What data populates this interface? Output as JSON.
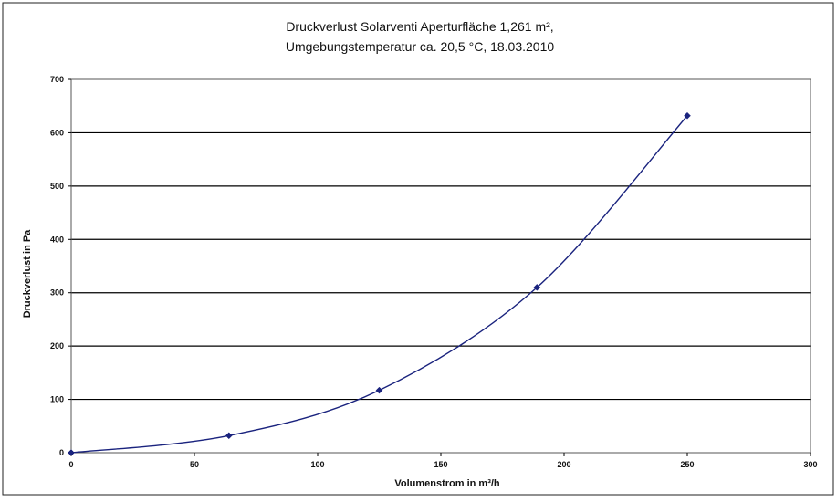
{
  "chart_data": {
    "type": "line",
    "title_lines": [
      "Druckverlust Solarventi Aperturfläche 1,261 m²,",
      "Umgebungstemperatur ca. 20,5 °C, 18.03.2010"
    ],
    "xlabel": "Volumenstrom in m³/h",
    "ylabel": "Druckverlust in Pa",
    "xlim": [
      0,
      300
    ],
    "ylim": [
      0,
      700
    ],
    "x_ticks": [
      "0",
      "50",
      "100",
      "150",
      "200",
      "250",
      "300"
    ],
    "y_ticks": [
      "0",
      "100",
      "200",
      "300",
      "400",
      "500",
      "600",
      "700"
    ],
    "grid": "horizontal",
    "legend": "none",
    "series": [
      {
        "color": "#1a237e",
        "line_style": "smooth",
        "marker": "diamond",
        "points": [
          {
            "x": 0,
            "y": 0
          },
          {
            "x": 64,
            "y": 32
          },
          {
            "x": 125,
            "y": 117
          },
          {
            "x": 189,
            "y": 310
          },
          {
            "x": 250,
            "y": 632
          }
        ]
      }
    ]
  }
}
